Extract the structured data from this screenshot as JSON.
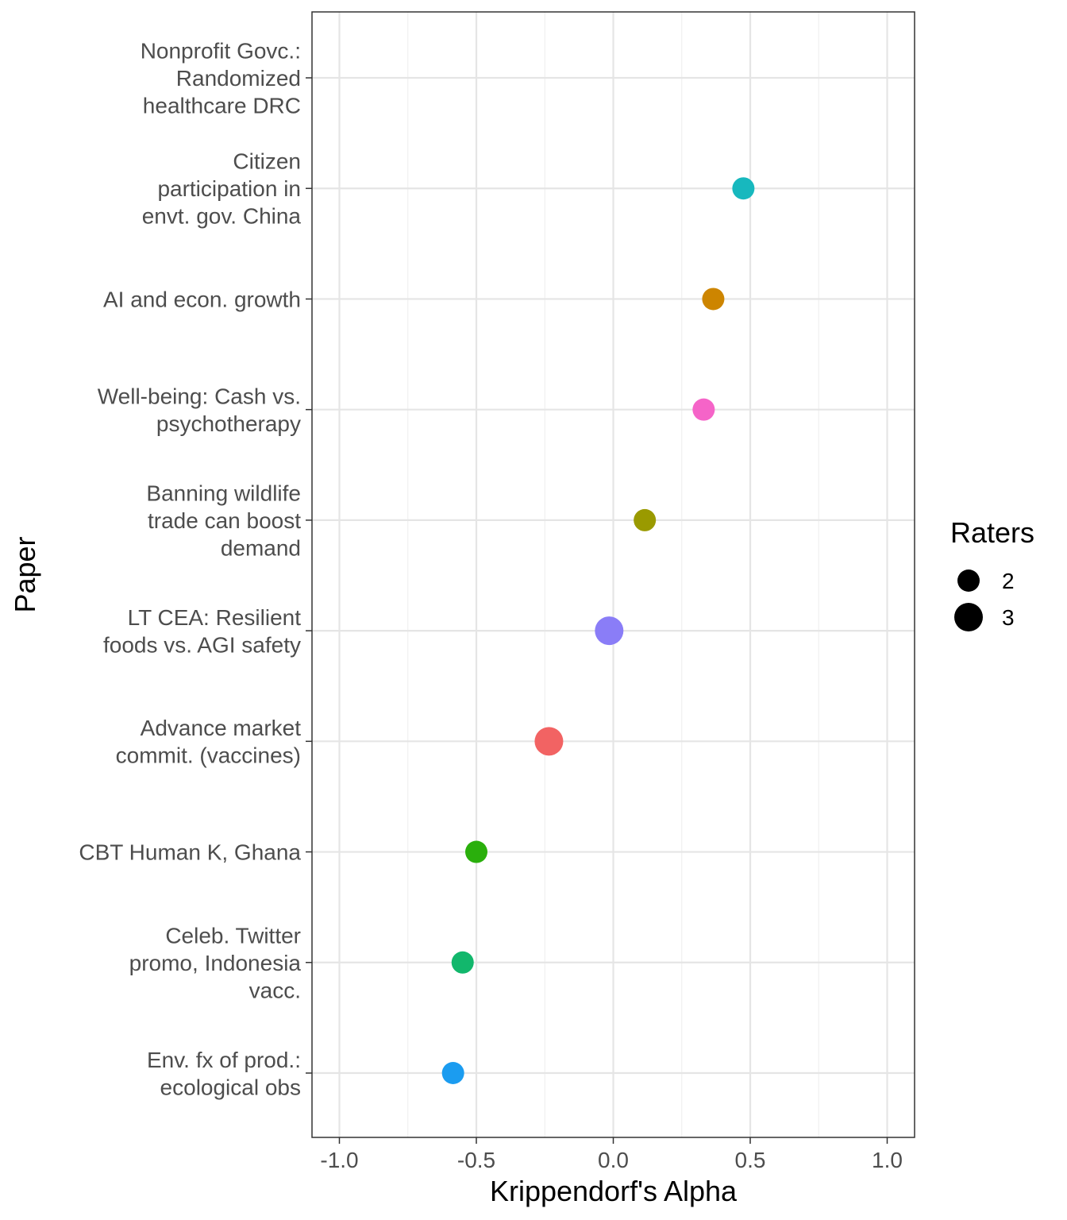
{
  "chart_data": {
    "type": "scatter",
    "xlabel": "Krippendorf's Alpha",
    "ylabel": "Paper",
    "xlim": [
      -1.1,
      1.1
    ],
    "x_ticks": [
      "-1.0",
      "-0.5",
      "0.0",
      "0.5",
      "1.0"
    ],
    "x_tick_values": [
      -1.0,
      -0.5,
      0.0,
      0.5,
      1.0
    ],
    "grid": true,
    "legend_placement": "right",
    "legend": {
      "title": "Raters",
      "entries": [
        {
          "label": "2",
          "raters": 2
        },
        {
          "label": "3",
          "raters": 3
        }
      ]
    },
    "categories": [
      [
        "Nonprofit Govc.:",
        "Randomized",
        "healthcare DRC"
      ],
      [
        "Citizen",
        "participation in",
        "envt. gov. China"
      ],
      [
        "AI and econ. growth"
      ],
      [
        "Well-being: Cash vs.",
        "psychotherapy"
      ],
      [
        "Banning wildlife",
        "trade can boost",
        "demand"
      ],
      [
        "LT CEA: Resilient",
        "foods vs. AGI safety"
      ],
      [
        "Advance market",
        "commit. (vaccines)"
      ],
      [
        "CBT Human K, Ghana"
      ],
      [
        "Celeb. Twitter",
        "promo, Indonesia",
        "vacc."
      ],
      [
        "Env. fx of prod.:",
        "ecological obs"
      ]
    ],
    "points": [
      {
        "category_index": 0,
        "x": null,
        "raters": null,
        "color": null
      },
      {
        "category_index": 1,
        "x": 0.475,
        "raters": 2,
        "color": "#17B8BE"
      },
      {
        "category_index": 2,
        "x": 0.365,
        "raters": 2,
        "color": "#CD8500"
      },
      {
        "category_index": 3,
        "x": 0.33,
        "raters": 2,
        "color": "#F564C8"
      },
      {
        "category_index": 4,
        "x": 0.115,
        "raters": 2,
        "color": "#9A9A00"
      },
      {
        "category_index": 5,
        "x": -0.015,
        "raters": 3,
        "color": "#8A7DF7"
      },
      {
        "category_index": 6,
        "x": -0.235,
        "raters": 3,
        "color": "#F26363"
      },
      {
        "category_index": 7,
        "x": -0.5,
        "raters": 2,
        "color": "#2AAF0C"
      },
      {
        "category_index": 8,
        "x": -0.55,
        "raters": 2,
        "color": "#12B76C"
      },
      {
        "category_index": 9,
        "x": -0.585,
        "raters": 2,
        "color": "#1B9CF0"
      }
    ]
  }
}
